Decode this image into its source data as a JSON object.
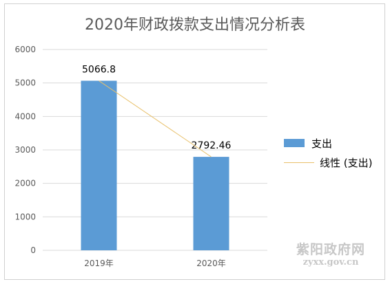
{
  "chart_data": {
    "type": "bar",
    "title": "2020年财政拨款支出情况分析表",
    "categories": [
      "2019年",
      "2020年"
    ],
    "series": [
      {
        "name": "支出",
        "values": [
          5066.8,
          2792.46
        ],
        "color": "#5b9bd5",
        "data_labels": [
          "5066.8",
          "2792.46"
        ]
      }
    ],
    "trendline": {
      "name": "线性 (支出)",
      "type": "linear",
      "color": "#e8c06a"
    },
    "y_ticks": [
      "0",
      "1000",
      "2000",
      "3000",
      "4000",
      "5000",
      "6000"
    ],
    "ylim": [
      0,
      6000
    ],
    "grid": true,
    "legend_position": "right"
  },
  "watermark": {
    "text": "紫阳政府网",
    "url": "zyxx.gov.cn"
  }
}
